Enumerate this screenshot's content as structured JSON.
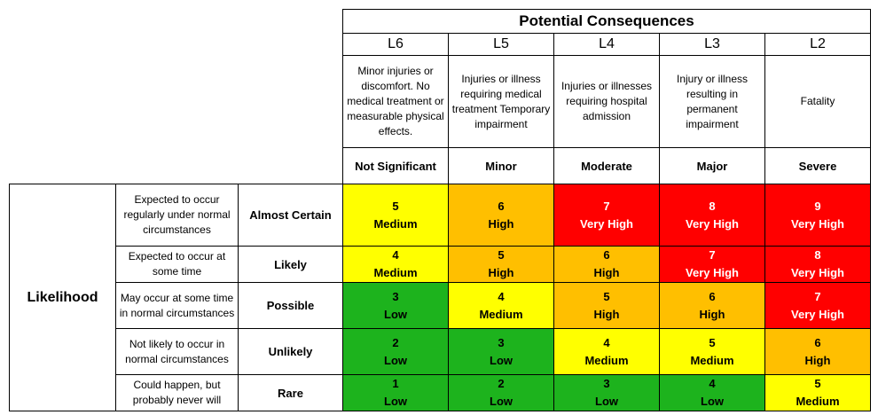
{
  "header": {
    "title": "Potential Consequences"
  },
  "levels": [
    "L6",
    "L5",
    "L4",
    "L3",
    "L2"
  ],
  "consequence_descriptions": [
    "Minor injuries or discomfort. No medical treatment or measurable physical effects.",
    "Injuries or illness requiring medical treatment Temporary impairment",
    "Injuries or illnesses requiring hospital admission",
    "Injury or illness resulting in permanent impairment",
    "Fatality"
  ],
  "consequence_labels": [
    "Not Significant",
    "Minor",
    "Moderate",
    "Major",
    "Severe"
  ],
  "likelihood": {
    "title": "Likelihood",
    "rows": [
      {
        "description": "Expected to occur regularly under normal circumstances",
        "label": "Almost Certain",
        "cells": [
          {
            "score": "5",
            "rating": "Medium"
          },
          {
            "score": "6",
            "rating": "High"
          },
          {
            "score": "7",
            "rating": "Very High"
          },
          {
            "score": "8",
            "rating": "Very High"
          },
          {
            "score": "9",
            "rating": "Very High"
          }
        ]
      },
      {
        "description": "Expected to occur at some time",
        "label": "Likely",
        "cells": [
          {
            "score": "4",
            "rating": "Medium"
          },
          {
            "score": "5",
            "rating": "High"
          },
          {
            "score": "6",
            "rating": "High"
          },
          {
            "score": "7",
            "rating": "Very High"
          },
          {
            "score": "8",
            "rating": "Very High"
          }
        ]
      },
      {
        "description": "May occur at some time in normal circumstances",
        "label": "Possible",
        "cells": [
          {
            "score": "3",
            "rating": "Low"
          },
          {
            "score": "4",
            "rating": "Medium"
          },
          {
            "score": "5",
            "rating": "High"
          },
          {
            "score": "6",
            "rating": "High"
          },
          {
            "score": "7",
            "rating": "Very High"
          }
        ]
      },
      {
        "description": "Not likely to occur in normal circumstances",
        "label": "Unlikely",
        "cells": [
          {
            "score": "2",
            "rating": "Low"
          },
          {
            "score": "3",
            "rating": "Low"
          },
          {
            "score": "4",
            "rating": "Medium"
          },
          {
            "score": "5",
            "rating": "Medium"
          },
          {
            "score": "6",
            "rating": "High"
          }
        ]
      },
      {
        "description": "Could happen, but probably never will",
        "label": "Rare",
        "cells": [
          {
            "score": "1",
            "rating": "Low"
          },
          {
            "score": "2",
            "rating": "Low"
          },
          {
            "score": "3",
            "rating": "Low"
          },
          {
            "score": "4",
            "rating": "Low"
          },
          {
            "score": "5",
            "rating": "Medium"
          }
        ]
      }
    ]
  },
  "rating_colors": {
    "Low": "#1db31d",
    "Medium": "#ffff00",
    "High": "#ffbf00",
    "Very High": "#ff0000"
  }
}
